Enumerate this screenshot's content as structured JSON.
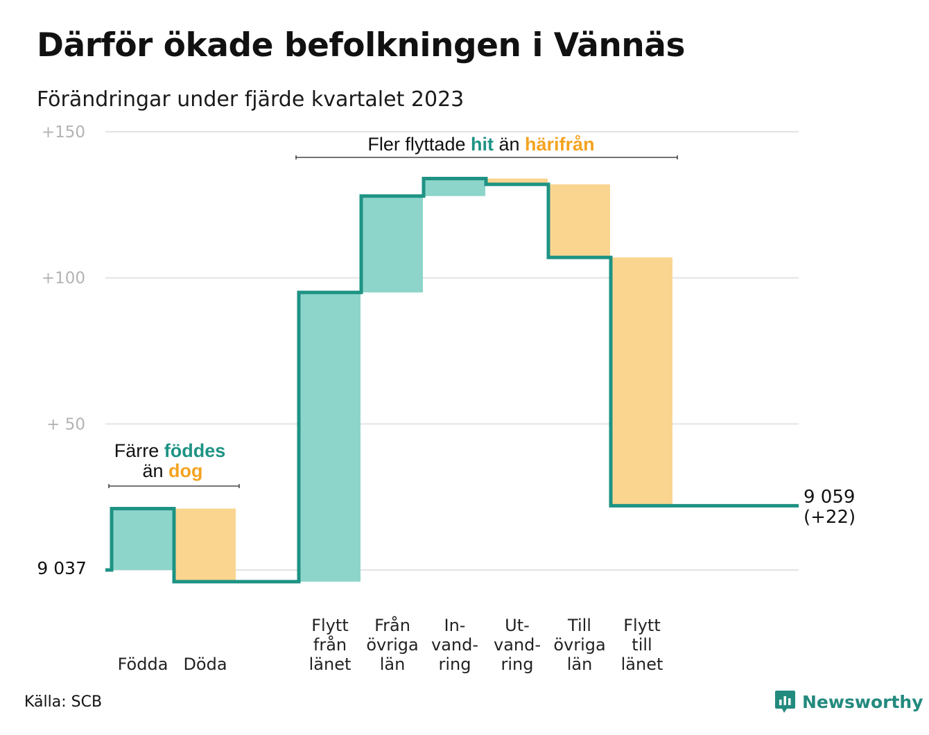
{
  "title": "Därför ökade befolkningen i Vännäs",
  "subtitle": "Förändringar under fjärde kvartalet 2023",
  "source": "Källa: SCB",
  "brand": "Newsworthy",
  "colors": {
    "increase": "#8dd5cb",
    "decrease": "#fad58f",
    "line": "#1e9384",
    "teal_text": "#1e9384",
    "orange_text": "#f4a321",
    "grid": "#e3e3e3"
  },
  "chart_data": {
    "type": "bar",
    "subtype": "waterfall",
    "start": {
      "label": "9  037",
      "value": 9037
    },
    "end": {
      "value": 9059,
      "label_lines": [
        "9 059",
        "(+22)"
      ]
    },
    "yaxis": {
      "ticks": [
        0,
        50,
        100,
        150
      ],
      "tick_labels": [
        "",
        "+  50",
        "+100",
        "+150"
      ],
      "range": [
        0,
        150
      ],
      "unit": "change from 9 037"
    },
    "steps": [
      {
        "label": [
          "Födda"
        ],
        "change": 21,
        "kind": "increase"
      },
      {
        "label": [
          "Döda"
        ],
        "change": -25,
        "kind": "decrease"
      },
      {
        "label": [],
        "change": 0,
        "kind": "gap"
      },
      {
        "label": [
          "Flytt",
          "från",
          "länet"
        ],
        "change": 99,
        "kind": "increase"
      },
      {
        "label": [
          "Från",
          "övriga",
          "län"
        ],
        "change": 33,
        "kind": "increase"
      },
      {
        "label": [
          "In-",
          "vand-",
          "ring"
        ],
        "change": 6,
        "kind": "increase"
      },
      {
        "label": [
          "Ut-",
          "vand-",
          "ring"
        ],
        "change": -2,
        "kind": "decrease"
      },
      {
        "label": [
          "Till",
          "övriga",
          "län"
        ],
        "change": -25,
        "kind": "decrease"
      },
      {
        "label": [
          "Flytt",
          "till",
          "länet"
        ],
        "change": -85,
        "kind": "decrease"
      }
    ],
    "annotations": {
      "births": {
        "line1_parts": [
          "Färre ",
          "föddes"
        ],
        "line2_parts": [
          "än ",
          "dog"
        ]
      },
      "moves": {
        "parts": [
          "Fler flyttade ",
          "hit",
          " än ",
          "härifrån"
        ]
      }
    }
  }
}
